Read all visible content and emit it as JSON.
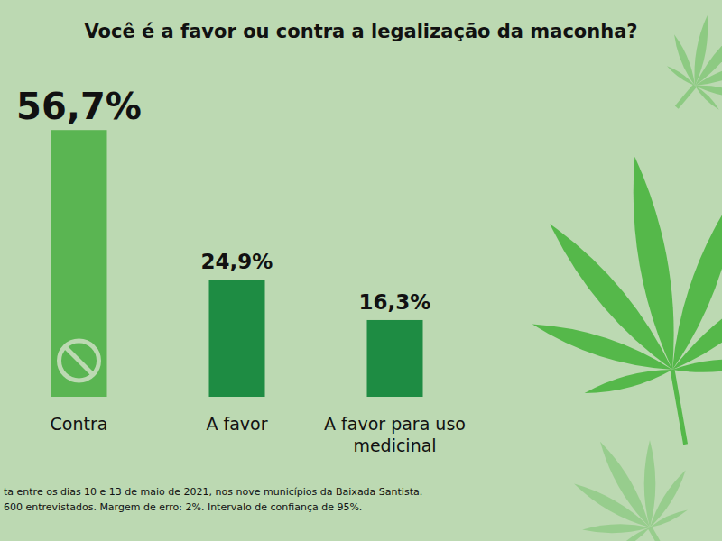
{
  "chart_data": {
    "type": "bar",
    "title": "Você é a favor ou contra a legalização da maconha?",
    "categories": [
      "Contra",
      "A favor",
      "A favor para uso medicinal"
    ],
    "values": [
      56.7,
      24.9,
      16.3
    ],
    "value_labels": [
      "56,7%",
      "24,9%",
      "16,3%"
    ],
    "colors": [
      "#5ab552",
      "#1e8c43",
      "#1e8c43"
    ],
    "ylim": [
      0,
      60
    ],
    "data_labels": true,
    "tick_labels": false,
    "grid": false,
    "annotations": [
      "ta entre os dias 10 e 13 de maio de 2021, nos nove municípios da Baixada Santista.",
      "600 entrevistados. Margem de erro: 2%. Intervalo de confiança de 95%."
    ]
  }
}
